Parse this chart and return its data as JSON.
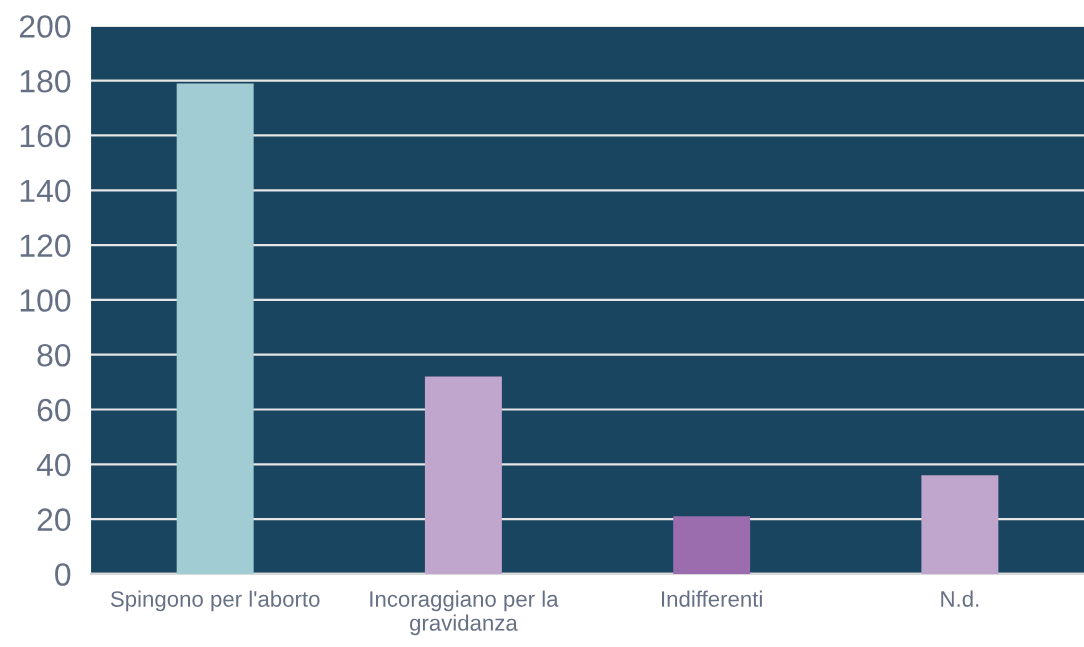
{
  "chart_data": {
    "type": "bar",
    "categories": [
      "Spingono per l'aborto",
      "Incoraggiano per la\ngravidanza",
      "Indifferenti",
      "N.d."
    ],
    "values": [
      179,
      72,
      21,
      36
    ],
    "colors": [
      "#a1ccd3",
      "#c0a5cd",
      "#9b6daf",
      "#c0a5cd"
    ],
    "ylim": [
      0,
      200
    ],
    "yticks": [
      0,
      20,
      40,
      60,
      80,
      100,
      120,
      140,
      160,
      180,
      200
    ],
    "grid": "y"
  }
}
